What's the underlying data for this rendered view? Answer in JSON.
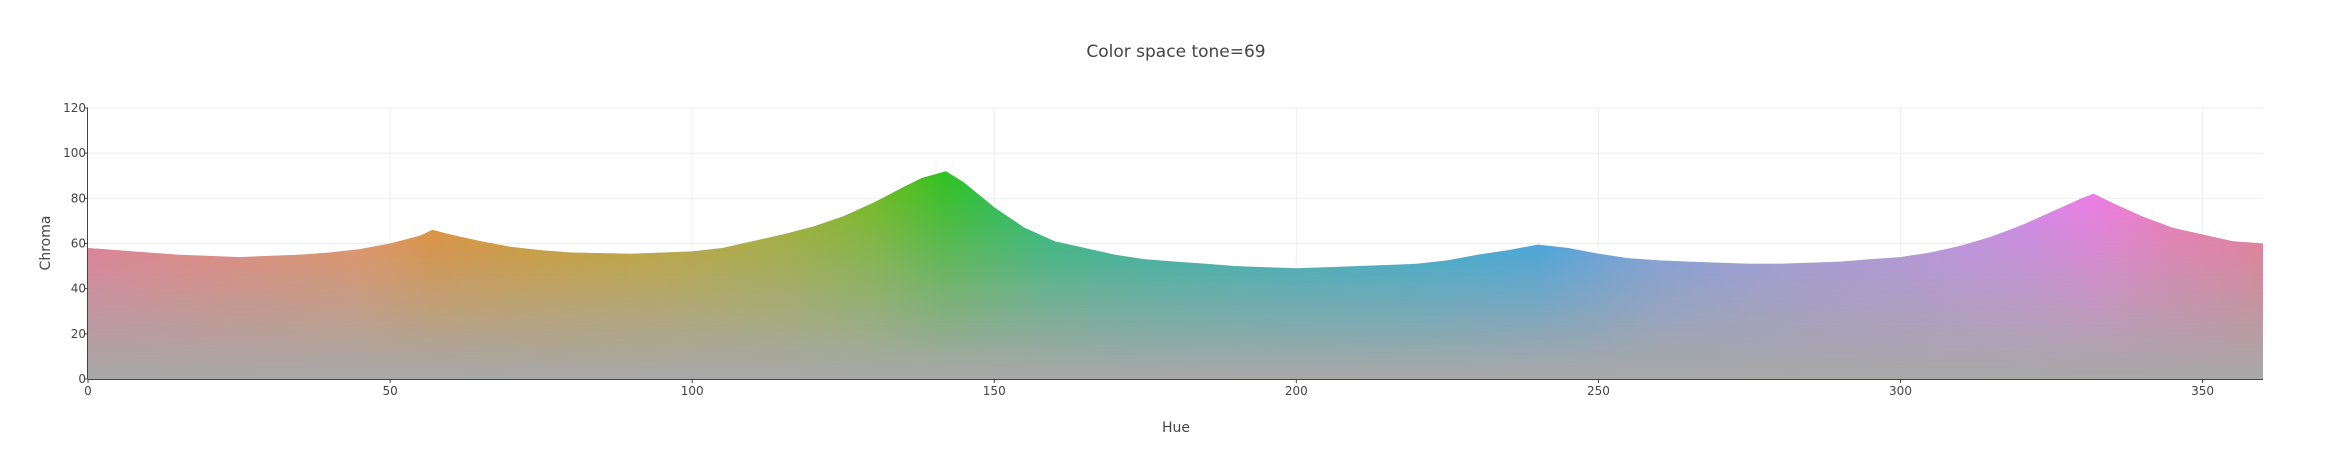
{
  "chart_data": {
    "type": "scatter",
    "title": "Color space tone=69",
    "xlabel": "Hue",
    "ylabel": "Chroma",
    "xlim": [
      0,
      360
    ],
    "ylim": [
      0,
      120
    ],
    "x_ticks": [
      0,
      50,
      100,
      150,
      200,
      250,
      300,
      350
    ],
    "y_ticks": [
      0,
      20,
      40,
      60,
      80,
      100,
      120
    ],
    "grid": true,
    "tone": 69,
    "base_color": "#a8a8a8",
    "max_chroma_envelope": {
      "hue": [
        0,
        5,
        10,
        15,
        20,
        25,
        30,
        35,
        40,
        45,
        50,
        55,
        57,
        60,
        65,
        70,
        75,
        80,
        90,
        100,
        105,
        110,
        115,
        120,
        125,
        130,
        135,
        138,
        142,
        145,
        150,
        155,
        160,
        165,
        170,
        175,
        180,
        185,
        190,
        195,
        200,
        205,
        210,
        215,
        220,
        225,
        230,
        235,
        240,
        245,
        250,
        255,
        260,
        265,
        270,
        275,
        280,
        285,
        290,
        295,
        300,
        305,
        310,
        315,
        320,
        325,
        330,
        332,
        335,
        340,
        345,
        350,
        355,
        360
      ],
      "chroma": [
        58,
        57,
        56,
        55,
        54.5,
        54,
        54.5,
        55,
        56,
        57.5,
        60,
        63.5,
        66,
        64,
        61,
        58.5,
        57,
        56,
        55.5,
        56.5,
        58,
        61,
        64,
        67.5,
        72,
        78,
        85,
        89,
        92,
        87,
        76,
        67,
        61,
        58,
        55,
        53,
        52,
        51,
        50,
        49.5,
        49,
        49.5,
        50,
        50.5,
        51,
        52.5,
        55,
        57,
        59.5,
        58,
        55.5,
        53.5,
        52.5,
        52,
        51.5,
        51,
        51,
        51.5,
        52,
        53,
        54,
        56,
        59,
        63,
        68,
        74,
        80,
        82,
        78,
        72,
        67,
        64,
        61,
        60
      ]
    },
    "hue_colors": [
      {
        "hue": 0,
        "color": "#fb6f92"
      },
      {
        "hue": 20,
        "color": "#fd7a70"
      },
      {
        "hue": 45,
        "color": "#fa8c4a"
      },
      {
        "hue": 57,
        "color": "#f08c1a"
      },
      {
        "hue": 75,
        "color": "#dc9a0c"
      },
      {
        "hue": 95,
        "color": "#c8a610"
      },
      {
        "hue": 115,
        "color": "#a2b218"
      },
      {
        "hue": 130,
        "color": "#6fbd16"
      },
      {
        "hue": 142,
        "color": "#2ec220"
      },
      {
        "hue": 160,
        "color": "#0fbf75"
      },
      {
        "hue": 180,
        "color": "#08b9a4"
      },
      {
        "hue": 200,
        "color": "#0ab3c4"
      },
      {
        "hue": 220,
        "color": "#08b0da"
      },
      {
        "hue": 240,
        "color": "#1aa6f5"
      },
      {
        "hue": 260,
        "color": "#6f9cf3"
      },
      {
        "hue": 280,
        "color": "#9e95f2"
      },
      {
        "hue": 300,
        "color": "#b98ef5"
      },
      {
        "hue": 320,
        "color": "#d983f8"
      },
      {
        "hue": 332,
        "color": "#f577ec"
      },
      {
        "hue": 345,
        "color": "#fb74bd"
      },
      {
        "hue": 360,
        "color": "#fb6f92"
      }
    ]
  }
}
